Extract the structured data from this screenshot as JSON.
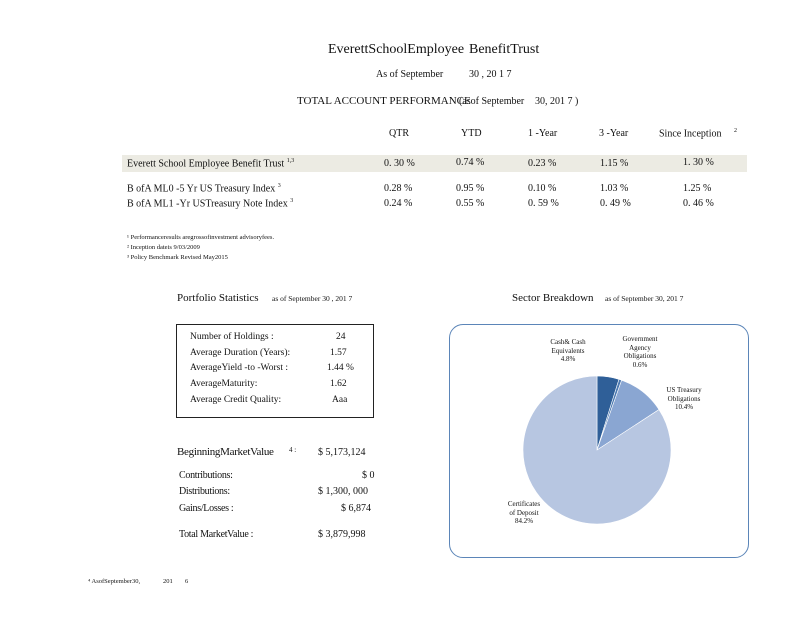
{
  "header": {
    "title_left": "EverettSchoolEmployee",
    "title_right": "BenefitTrust",
    "as_of": "As of September",
    "as_of_date": "30 , 20 1 7",
    "section": "TOTAL ACCOUNT PERFORMANCE",
    "section_asof": "(asof September",
    "section_asof_date": "30, 201 7 )"
  },
  "performance": {
    "columns": [
      "QTR",
      "YTD",
      "1 -Year",
      "3 -Year",
      "Since  Inception"
    ],
    "inception_sup": "2",
    "rows": [
      {
        "name": "Everett  School  Employee  Benefit  Trust",
        "sup": "1,3",
        "values": [
          "0. 30  %",
          "0.74  %",
          "0.23  %",
          "1.15  %",
          "1. 30  %"
        ]
      },
      {
        "name": "B ofA  ML0  -5  Yr US  Treasury  Index",
        "sup": "3",
        "values": [
          "0.28  %",
          "0.95  %",
          "0.10  %",
          "1.03  %",
          "1.25  %"
        ]
      },
      {
        "name": "B ofA  ML1  -Yr USTreasury  Note  Index",
        "sup": "3",
        "values": [
          "0.24  %",
          "0.55  %",
          "0. 59  %",
          "0. 49  %",
          "0. 46  %"
        ]
      }
    ]
  },
  "footnotes": [
    "¹ Performanceresults      aregrossofinvestment          advisoryfees.",
    "² Inception    dateis    9/03/2009",
    "³ Policy   Benchmark     Revised     May2015"
  ],
  "portfolio": {
    "title": "Portfolio  Statistics",
    "asof": "as  of September      30 ,  201  7",
    "stats": [
      {
        "label": "Number     of  Holdings     :",
        "value": "24"
      },
      {
        "label": "Average    Duration     (Years):",
        "value": "1.57"
      },
      {
        "label": "AverageYield      -to  -Worst  :",
        "value": "1.44    %"
      },
      {
        "label": "AverageMaturity:",
        "value": "1.62"
      },
      {
        "label": "Average    Credit   Quality:",
        "value": "Aaa"
      }
    ]
  },
  "market_value": {
    "beginning_label": "BeginningMarketValue",
    "beginning_sup": "4 :",
    "beginning_value": "$ 5,173,124",
    "items": [
      {
        "label": "Contributions:",
        "value": "$ 0"
      },
      {
        "label": "Distributions:",
        "value": "$ 1,300,    000"
      },
      {
        "label": "Gains/Losses         :",
        "value": "$ 6,874"
      }
    ],
    "total_label": "Total   MarketValue       :",
    "total_value": "$ 3,879,998"
  },
  "sector": {
    "title": "Sector   Breakdown",
    "asof": "as  of September       30,   201   7",
    "slices": [
      {
        "name": "Cash&  Cash\nEquivalents",
        "pct_label": "4.8%",
        "value": 4.8,
        "color": "#2f5f98"
      },
      {
        "name": "Government\nAgency\nObligations",
        "pct_label": "0.6%",
        "value": 0.6,
        "color": "#4a78b0"
      },
      {
        "name": "US  Treasury\nObligations",
        "pct_label": "10.4%",
        "value": 10.4,
        "color": "#8aa6d2"
      },
      {
        "name": "Certificates\nof  Deposit",
        "pct_label": "84.2%",
        "value": 84.2,
        "color": "#b7c6e1"
      }
    ]
  },
  "bottom_note": {
    "text": "⁴ AsofSeptember30,",
    "year": "201",
    "day": "6"
  }
}
